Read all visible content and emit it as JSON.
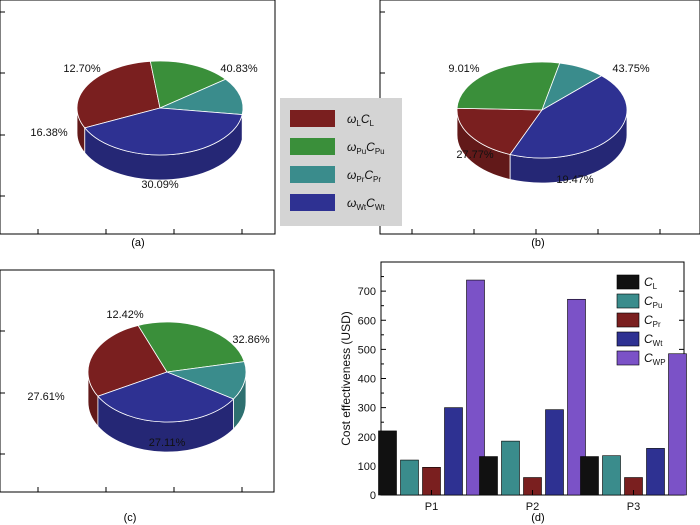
{
  "colors": {
    "labor": "#7a1f1f",
    "purchase": "#3a8f3a",
    "processing": "#3a8c8c",
    "waste": "#2e3192",
    "waste_processing": "#7b52c7",
    "black": "#111111"
  },
  "panel_labels": [
    "(a)",
    "(b)",
    "(c)",
    "(d)"
  ],
  "legend_pie": [
    {
      "omega_sub": "L",
      "c_sub": "L"
    },
    {
      "omega_sub": "Pu",
      "c_sub": "Pu"
    },
    {
      "omega_sub": "Pr",
      "c_sub": "Pr"
    },
    {
      "omega_sub": "Wt",
      "c_sub": "Wt"
    }
  ],
  "chart_data": [
    {
      "type": "pie",
      "panel": "(a)",
      "labels": [
        "ωL CL",
        "ωPu CPu",
        "ωPr CPr",
        "ωWt CWt"
      ],
      "values": [
        30.09,
        16.38,
        12.7,
        40.83
      ],
      "value_labels": [
        "30.09%",
        "16.38%",
        "12.70%",
        "40.83%"
      ]
    },
    {
      "type": "pie",
      "panel": "(b)",
      "labels": [
        "ωL CL",
        "ωPu CPu",
        "ωPr CPr",
        "ωWt CWt"
      ],
      "values": [
        19.47,
        27.77,
        9.01,
        43.75
      ],
      "value_labels": [
        "19.47%",
        "27.77%",
        "9.01%",
        "43.75%"
      ]
    },
    {
      "type": "pie",
      "panel": "(c)",
      "labels": [
        "ωL CL",
        "ωPu CPu",
        "ωPr CPr",
        "ωWt CWt"
      ],
      "values": [
        27.11,
        27.61,
        12.42,
        32.86
      ],
      "value_labels": [
        "27.11%",
        "27.61%",
        "12.42%",
        "32.86%"
      ]
    },
    {
      "type": "bar",
      "panel": "(d)",
      "categories": [
        "P1",
        "P2",
        "P3"
      ],
      "ylabel": "Cost effectiveness (USD)",
      "ylim": [
        0,
        800
      ],
      "yticks": [
        0,
        100,
        200,
        300,
        400,
        500,
        600,
        700
      ],
      "series": [
        {
          "name": "CL",
          "base": "C",
          "sub": "L",
          "color": "#111111",
          "values": [
            220,
            132,
            132
          ]
        },
        {
          "name": "CPu",
          "base": "C",
          "sub": "Pu",
          "color": "#3a8c8c",
          "values": [
            120,
            185,
            135
          ]
        },
        {
          "name": "CPr",
          "base": "C",
          "sub": "Pr",
          "color": "#7a1f1f",
          "values": [
            95,
            60,
            60
          ]
        },
        {
          "name": "CWt",
          "base": "C",
          "sub": "Wt",
          "color": "#2e3192",
          "values": [
            300,
            293,
            160
          ]
        },
        {
          "name": "CWP",
          "base": "C",
          "sub": "WP",
          "color": "#7b52c7",
          "values": [
            738,
            672,
            485
          ]
        }
      ]
    }
  ]
}
